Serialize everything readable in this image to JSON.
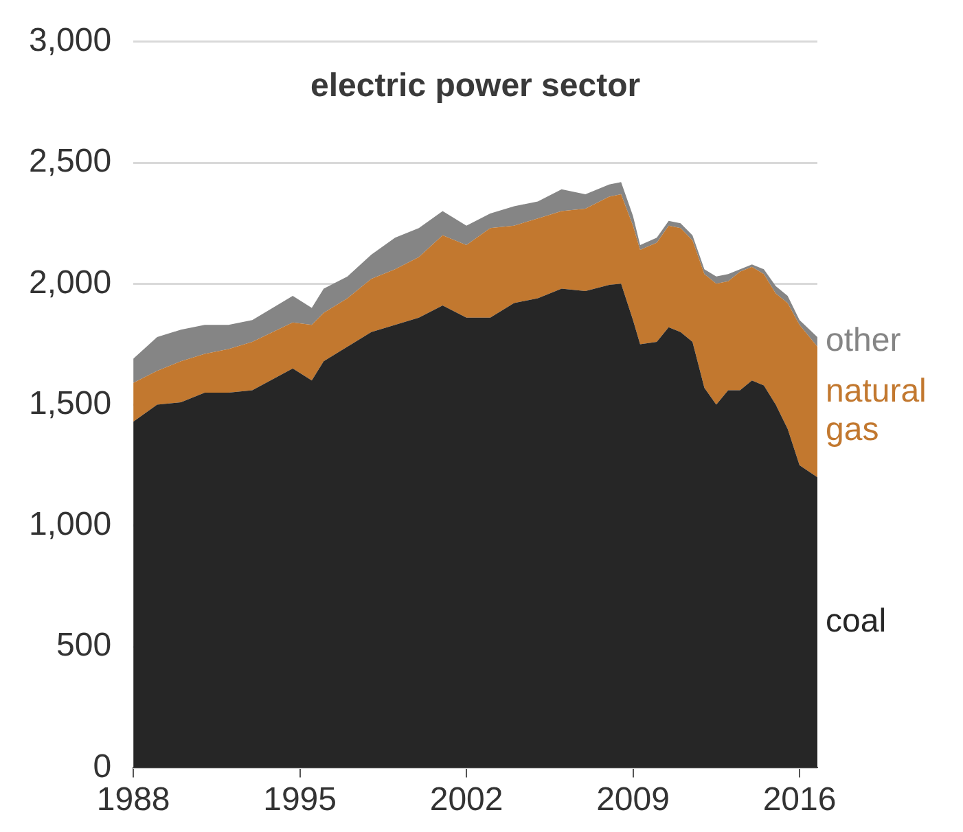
{
  "chart_data": {
    "type": "area",
    "stacked": true,
    "title": "electric power sector",
    "x": [
      1988,
      1989,
      1990,
      1991,
      1992,
      1993,
      1994.7,
      1995.5,
      1996,
      1997,
      1998,
      1999,
      2000,
      2001,
      2002,
      2003,
      2004,
      2005,
      2006,
      2007,
      2008,
      2008.5,
      2009,
      2009.3,
      2010,
      2010.5,
      2011,
      2011.5,
      2012,
      2012.5,
      2013,
      2013.5,
      2014,
      2014.5,
      2015,
      2015.5,
      2016,
      2016.75
    ],
    "series": [
      {
        "name": "coal",
        "color": "#262626",
        "values": [
          1430,
          1500,
          1510,
          1550,
          1550,
          1560,
          1650,
          1600,
          1680,
          1740,
          1800,
          1830,
          1860,
          1910,
          1860,
          1860,
          1920,
          1940,
          1980,
          1970,
          1995,
          2000,
          1850,
          1750,
          1760,
          1820,
          1800,
          1760,
          1570,
          1500,
          1560,
          1560,
          1600,
          1580,
          1500,
          1400,
          1250,
          1200
        ]
      },
      {
        "name": "natural gas",
        "color": "#c2782f",
        "values": [
          160,
          140,
          170,
          160,
          180,
          200,
          190,
          230,
          200,
          200,
          220,
          230,
          250,
          290,
          300,
          370,
          320,
          330,
          320,
          340,
          365,
          370,
          390,
          390,
          410,
          420,
          430,
          420,
          470,
          500,
          450,
          490,
          470,
          460,
          460,
          520,
          580,
          540
        ]
      },
      {
        "name": "other",
        "color": "#858585",
        "values": [
          100,
          140,
          130,
          120,
          100,
          90,
          110,
          70,
          100,
          90,
          100,
          130,
          120,
          100,
          80,
          60,
          80,
          70,
          90,
          60,
          50,
          50,
          40,
          20,
          20,
          20,
          20,
          20,
          20,
          30,
          30,
          10,
          10,
          20,
          30,
          30,
          20,
          40
        ]
      }
    ],
    "xlim": [
      1988,
      2016.75
    ],
    "xticks": [
      1988,
      1995,
      2002,
      2009,
      2016
    ],
    "ylim": [
      0,
      3000
    ],
    "yticks": [
      {
        "value": 0,
        "label": "0"
      },
      {
        "value": 500,
        "label": "500"
      },
      {
        "value": 1000,
        "label": "1,000"
      },
      {
        "value": 1500,
        "label": "1,500"
      },
      {
        "value": 2000,
        "label": "2,000"
      },
      {
        "value": 2500,
        "label": "2,500"
      },
      {
        "value": 3000,
        "label": "3,000"
      }
    ],
    "grid": "y",
    "legend": false
  }
}
